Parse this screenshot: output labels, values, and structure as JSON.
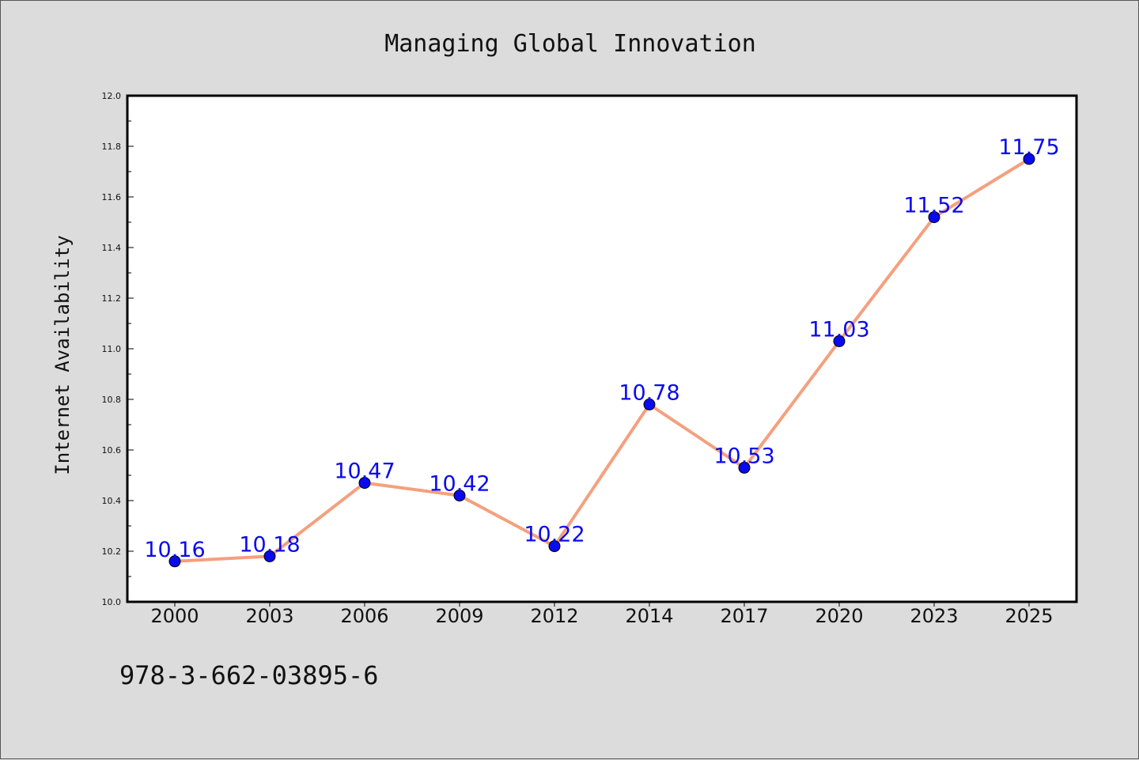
{
  "chart_data": {
    "type": "line",
    "title": "Managing Global Innovation",
    "xlabel": "",
    "ylabel": "Internet Availability",
    "categories": [
      "2000",
      "2003",
      "2006",
      "2009",
      "2012",
      "2014",
      "2017",
      "2020",
      "2023",
      "2025"
    ],
    "series": [
      {
        "values": [
          10.16,
          10.18,
          10.47,
          10.42,
          10.22,
          10.78,
          10.53,
          11.03,
          11.52,
          11.75
        ],
        "line_color": "#f4a07e",
        "marker_color": "#0a0aee",
        "label_color": "#0a0aee"
      }
    ],
    "data_labels": [
      "10.16",
      "10.18",
      "10.47",
      "10.42",
      "10.22",
      "10.78",
      "10.53",
      "11.03",
      "11.52",
      "11.75"
    ],
    "ylim": [
      10.0,
      12.0
    ],
    "yticks": [
      "10.0",
      "10.2",
      "10.4",
      "10.6",
      "10.8",
      "11.0",
      "11.2",
      "11.4",
      "11.6",
      "11.8",
      "12.0"
    ],
    "grid": false,
    "legend": "none"
  },
  "footer": {
    "isbn": "978-3-662-03895-6"
  },
  "colors": {
    "background": "#dcdcdc",
    "plot_background": "#ffffff",
    "axis": "#000000"
  }
}
